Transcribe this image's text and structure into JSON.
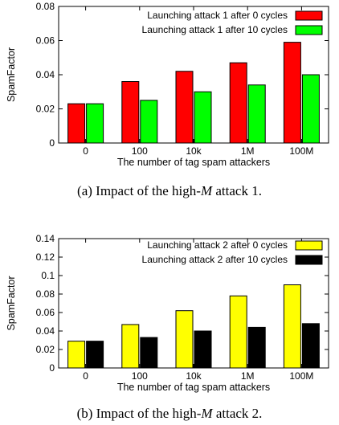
{
  "chart_data": [
    {
      "type": "bar",
      "categories": [
        "0",
        "100",
        "10k",
        "1M",
        "100M"
      ],
      "series": [
        {
          "name": "Launching attack 1 after 0 cycles",
          "values": [
            0.023,
            0.036,
            0.042,
            0.047,
            0.059
          ],
          "color": "#ff0000"
        },
        {
          "name": "Launching attack 1 after 10 cycles",
          "values": [
            0.023,
            0.025,
            0.03,
            0.034,
            0.04
          ],
          "color": "#00ff00"
        }
      ],
      "xlabel": "The number of tag spam attackers",
      "ylabel": "SpamFactor",
      "ylim": [
        0,
        0.08
      ],
      "yticks": [
        "0",
        "0.02",
        "0.04",
        "0.06",
        "0.08"
      ],
      "legend_position": "top-right",
      "grid": false,
      "caption": {
        "prefix": "(a) Impact of the high-",
        "math": "M",
        "suffix": " attack 1."
      }
    },
    {
      "type": "bar",
      "categories": [
        "0",
        "100",
        "10k",
        "1M",
        "100M"
      ],
      "series": [
        {
          "name": "Launching attack 2 after 0 cycles",
          "values": [
            0.029,
            0.047,
            0.062,
            0.078,
            0.09
          ],
          "color": "#ffff00"
        },
        {
          "name": "Launching attack 2 after 10 cycles",
          "values": [
            0.029,
            0.033,
            0.04,
            0.044,
            0.048
          ],
          "color": "#000000"
        }
      ],
      "xlabel": "The number of tag spam attackers",
      "ylabel": "SpamFactor",
      "ylim": [
        0,
        0.14
      ],
      "yticks": [
        "0",
        "0.02",
        "0.04",
        "0.06",
        "0.08",
        "0.1",
        "0.12",
        "0.14"
      ],
      "legend_position": "top-right",
      "grid": false,
      "caption": {
        "prefix": "(b) Impact of the high-",
        "math": "M",
        "suffix": " attack 2."
      }
    }
  ]
}
